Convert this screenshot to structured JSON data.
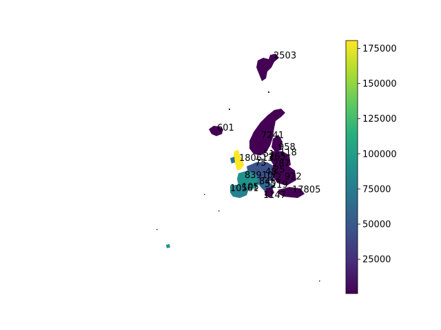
{
  "map": {
    "colormap": "viridis",
    "colors": {
      "viridis_low": "#440154",
      "viridis_25": "#3b528b",
      "viridis_50": "#21918c",
      "viridis_75": "#5ec962",
      "viridis_high": "#fde725"
    },
    "value_labels": [
      {
        "id": "svalbard",
        "text": "2503"
      },
      {
        "id": "iceland",
        "text": "601"
      },
      {
        "id": "norway-sweden",
        "text": "7241"
      },
      {
        "id": "finland-area",
        "text": "958"
      },
      {
        "id": "baltic",
        "text": "118"
      },
      {
        "id": "uk",
        "text": "180613"
      },
      {
        "id": "denmark",
        "text": "51"
      },
      {
        "id": "poland",
        "text": "265"
      },
      {
        "id": "benelux",
        "text": "287"
      },
      {
        "id": "germany",
        "text": "75"
      },
      {
        "id": "czech",
        "text": "25"
      },
      {
        "id": "france",
        "text": "83910"
      },
      {
        "id": "austria",
        "text": "48"
      },
      {
        "id": "hungary",
        "text": "22"
      },
      {
        "id": "romania",
        "text": "922"
      },
      {
        "id": "switzerland",
        "text": "84"
      },
      {
        "id": "italy",
        "text": "55"
      },
      {
        "id": "balkans",
        "text": "219"
      },
      {
        "id": "spain",
        "text": "10561"
      },
      {
        "id": "portugal",
        "text": "105"
      },
      {
        "id": "greece",
        "text": "1147"
      },
      {
        "id": "turkey",
        "text": "17805"
      }
    ]
  },
  "colorbar": {
    "range": [
      600,
      180613
    ],
    "tick_labels": [
      "25000",
      "50000",
      "75000",
      "100000",
      "125000",
      "150000",
      "175000"
    ],
    "tick_values": [
      25000,
      50000,
      75000,
      100000,
      125000,
      150000,
      175000
    ]
  }
}
